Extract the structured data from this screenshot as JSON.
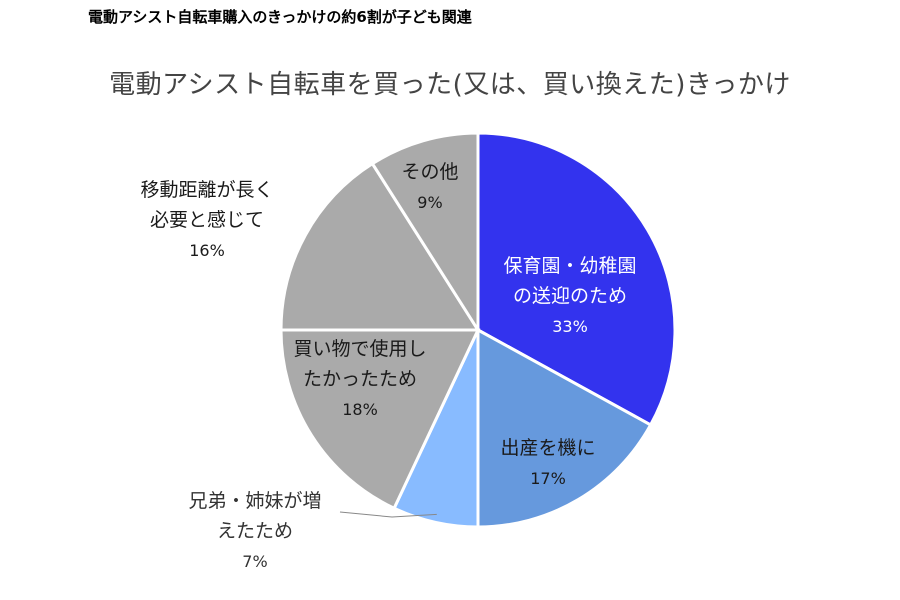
{
  "heading": "電動アシスト自転車購入のきっかけの約6割が子ども関連",
  "chart_data": {
    "type": "pie",
    "title": "電動アシスト自転車を買った(又は、買い換えた)きっかけ",
    "slices": [
      {
        "label_lines": [
          "保育園・幼稚園",
          "の送迎のため"
        ],
        "percent_text": "33%",
        "value": 33,
        "color": "#3333ee",
        "text_color": "#ffffff"
      },
      {
        "label_lines": [
          "出産を機に"
        ],
        "percent_text": "17%",
        "value": 17,
        "color": "#6699dd",
        "text_color": "#1a1a1a"
      },
      {
        "label_lines": [
          "兄弟・姉妹が増",
          "えたため"
        ],
        "percent_text": "7%",
        "value": 7,
        "color": "#88bbff",
        "text_color": "#333333"
      },
      {
        "label_lines": [
          "買い物で使用し",
          "たかったため"
        ],
        "percent_text": "18%",
        "value": 18,
        "color": "#aaaaaa",
        "text_color": "#1a1a1a"
      },
      {
        "label_lines": [
          "移動距離が長く",
          "必要と感じて"
        ],
        "percent_text": "16%",
        "value": 16,
        "color": "#aaaaaa",
        "text_color": "#1a1a1a"
      },
      {
        "label_lines": [
          "その他"
        ],
        "percent_text": "9%",
        "value": 9,
        "color": "#aaaaaa",
        "text_color": "#1a1a1a"
      }
    ]
  }
}
